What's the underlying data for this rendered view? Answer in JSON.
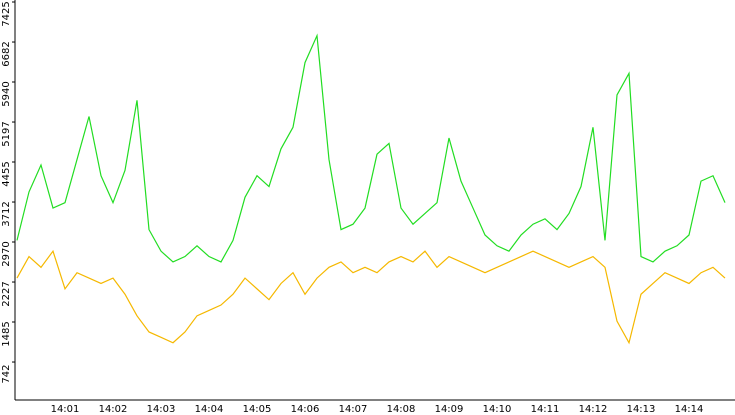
{
  "chart_data": {
    "type": "line",
    "categories": [
      null,
      null,
      null,
      null,
      "14:01",
      null,
      null,
      null,
      "14:02",
      null,
      null,
      null,
      "14:03",
      null,
      null,
      null,
      "14:04",
      null,
      null,
      null,
      "14:05",
      null,
      null,
      null,
      "14:06",
      null,
      null,
      null,
      "14:07",
      null,
      null,
      null,
      "14:08",
      null,
      null,
      null,
      "14:09",
      null,
      null,
      null,
      "14:10",
      null,
      null,
      null,
      "14:11",
      null,
      null,
      null,
      "14:12",
      null,
      null,
      null,
      "14:13",
      null,
      null,
      null,
      "14:14",
      null,
      null,
      null
    ],
    "series": [
      {
        "color": "#22dd22",
        "values": [
          3000,
          3900,
          4400,
          3600,
          3700,
          4500,
          5300,
          4200,
          3700,
          4300,
          5600,
          3200,
          2800,
          2600,
          2700,
          2900,
          2700,
          2600,
          3000,
          3800,
          4200,
          4000,
          4700,
          5100,
          6300,
          6800,
          4500,
          3200,
          3300,
          3600,
          4600,
          4800,
          3600,
          3300,
          3500,
          3700,
          4900,
          4100,
          3600,
          3100,
          2900,
          2800,
          3100,
          3300,
          3400,
          3200,
          3500,
          4000,
          5100,
          3000,
          5700,
          6100,
          2700,
          2600,
          2800,
          2900,
          3100,
          4100,
          4200,
          3700
        ]
      },
      {
        "color": "#f5b800",
        "values": [
          2300,
          2700,
          2500,
          2800,
          2100,
          2400,
          2300,
          2200,
          2300,
          2000,
          1600,
          1300,
          1200,
          1100,
          1300,
          1600,
          1700,
          1800,
          2000,
          2300,
          2100,
          1900,
          2200,
          2400,
          2000,
          2300,
          2500,
          2600,
          2400,
          2500,
          2400,
          2600,
          2700,
          2600,
          2800,
          2500,
          2700,
          2600,
          2500,
          2400,
          2500,
          2600,
          2700,
          2800,
          2700,
          2600,
          2500,
          2600,
          2700,
          2500,
          1500,
          1100,
          2000,
          2200,
          2400,
          2300,
          2200,
          2400,
          2500,
          2300
        ]
      }
    ],
    "ylim": [
      0,
      7425
    ],
    "yticks": [
      742,
      1485,
      2227,
      2970,
      3712,
      4455,
      5197,
      5940,
      6682,
      7425
    ]
  }
}
